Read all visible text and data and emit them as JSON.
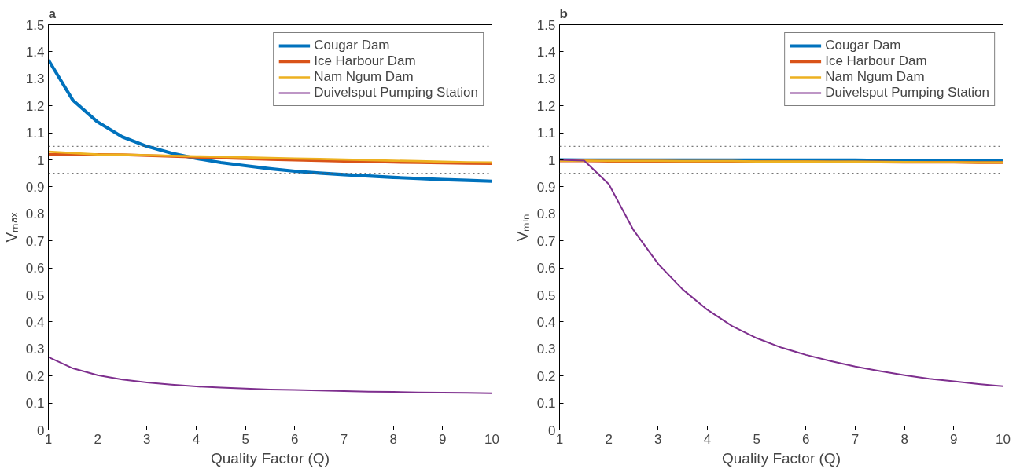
{
  "chart_data": [
    {
      "type": "line",
      "title": "a",
      "xlabel": "Quality Factor (Q)",
      "ylabel": "Vₘₐₓ",
      "xlim": [
        1,
        10
      ],
      "ylim": [
        0,
        1.5
      ],
      "xticks": [
        1,
        2,
        3,
        4,
        5,
        6,
        7,
        8,
        9,
        10
      ],
      "yticks": [
        0,
        0.1,
        0.2,
        0.3,
        0.4,
        0.5,
        0.6,
        0.7,
        0.8,
        0.9,
        1,
        1.1,
        1.2,
        1.3,
        1.4,
        1.5
      ],
      "grid": false,
      "legend": "top right",
      "line_style": "solid",
      "marker": "none",
      "x": [
        1,
        1.5,
        2,
        2.5,
        3,
        3.5,
        4,
        4.5,
        5,
        5.5,
        6,
        6.5,
        7,
        7.5,
        8,
        8.5,
        9,
        9.5,
        10
      ],
      "series": [
        {
          "name": "Cougar Dam",
          "color": "#0072bd",
          "values": [
            1.37,
            1.22,
            1.14,
            1.085,
            1.05,
            1.025,
            1.005,
            0.99,
            0.978,
            0.967,
            0.958,
            0.951,
            0.945,
            0.94,
            0.935,
            0.931,
            0.927,
            0.924,
            0.921
          ]
        },
        {
          "name": "Ice Harbour Dam",
          "color": "#d95319",
          "values": [
            1.02,
            1.02,
            1.02,
            1.019,
            1.016,
            1.013,
            1.01,
            1.007,
            1.004,
            1.001,
            0.999,
            0.997,
            0.995,
            0.993,
            0.991,
            0.99,
            0.988,
            0.987,
            0.986
          ]
        },
        {
          "name": "Nam Ngum Dam",
          "color": "#edb120",
          "values": [
            1.03,
            1.025,
            1.02,
            1.019,
            1.017,
            1.015,
            1.013,
            1.011,
            1.009,
            1.007,
            1.005,
            1.003,
            1.001,
            0.999,
            0.997,
            0.995,
            0.993,
            0.991,
            0.99
          ]
        },
        {
          "name": "Duivelsput Pumping Station",
          "color": "#7e2f8e",
          "values": [
            0.27,
            0.228,
            0.203,
            0.187,
            0.176,
            0.168,
            0.161,
            0.157,
            0.153,
            0.15,
            0.148,
            0.146,
            0.144,
            0.142,
            0.141,
            0.139,
            0.138,
            0.137,
            0.136
          ]
        }
      ],
      "ref_lines": [
        {
          "axis": "y",
          "value": 1.05,
          "color": "#555555",
          "line_style": "dotted"
        },
        {
          "axis": "y",
          "value": 0.95,
          "color": "#555555",
          "line_style": "dotted"
        }
      ]
    },
    {
      "type": "line",
      "title": "b",
      "xlabel": "Quality Factor (Q)",
      "ylabel": "Vₘᵢₙ",
      "xlim": [
        1,
        10
      ],
      "ylim": [
        0,
        1.5
      ],
      "xticks": [
        1,
        2,
        3,
        4,
        5,
        6,
        7,
        8,
        9,
        10
      ],
      "yticks": [
        0,
        0.1,
        0.2,
        0.3,
        0.4,
        0.5,
        0.6,
        0.7,
        0.8,
        0.9,
        1,
        1.1,
        1.2,
        1.3,
        1.4,
        1.5
      ],
      "grid": false,
      "legend": "top right",
      "line_style": "solid",
      "marker": "none",
      "x": [
        1,
        1.5,
        2,
        2.5,
        3,
        3.5,
        4,
        4.5,
        5,
        5.5,
        6,
        6.5,
        7,
        7.5,
        8,
        8.5,
        9,
        9.5,
        10
      ],
      "series": [
        {
          "name": "Cougar Dam",
          "color": "#0072bd",
          "values": [
            1.0,
            0.999,
            0.999,
            0.999,
            0.999,
            0.999,
            0.999,
            0.999,
            0.999,
            0.999,
            0.999,
            0.999,
            0.999,
            0.998,
            0.998,
            0.998,
            0.998,
            0.998,
            0.998
          ]
        },
        {
          "name": "Ice Harbour Dam",
          "color": "#d95319",
          "values": [
            0.996,
            0.996,
            0.995,
            0.995,
            0.995,
            0.994,
            0.994,
            0.994,
            0.993,
            0.993,
            0.993,
            0.992,
            0.992,
            0.992,
            0.991,
            0.991,
            0.991,
            0.99,
            0.99
          ]
        },
        {
          "name": "Nam Ngum Dam",
          "color": "#edb120",
          "values": [
            0.997,
            0.997,
            0.996,
            0.996,
            0.996,
            0.995,
            0.995,
            0.995,
            0.994,
            0.994,
            0.994,
            0.993,
            0.993,
            0.992,
            0.992,
            0.991,
            0.991,
            0.99,
            0.99
          ]
        },
        {
          "name": "Duivelsput Pumping Station",
          "color": "#7e2f8e",
          "values": [
            1.0,
            0.997,
            0.91,
            0.74,
            0.615,
            0.52,
            0.445,
            0.385,
            0.34,
            0.305,
            0.278,
            0.255,
            0.235,
            0.218,
            0.203,
            0.19,
            0.18,
            0.17,
            0.162
          ]
        }
      ],
      "ref_lines": [
        {
          "axis": "y",
          "value": 1.05,
          "color": "#555555",
          "line_style": "dotted"
        },
        {
          "axis": "y",
          "value": 0.95,
          "color": "#555555",
          "line_style": "dotted"
        }
      ]
    }
  ]
}
